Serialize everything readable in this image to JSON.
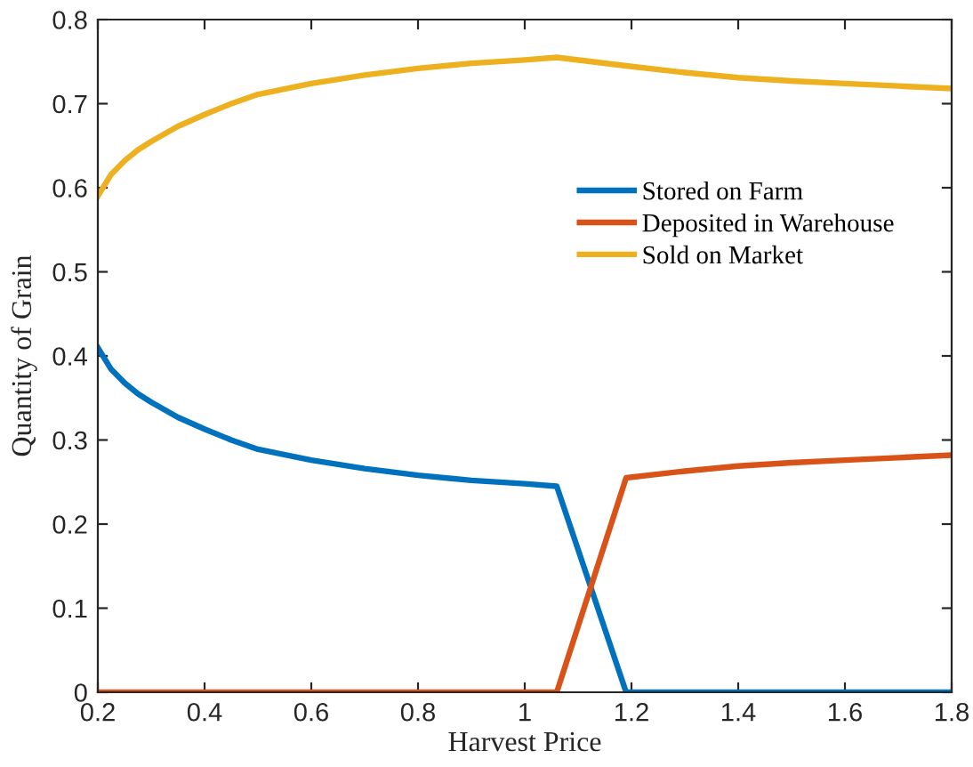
{
  "chart_data": {
    "type": "line",
    "xlabel": "Harvest Price",
    "ylabel": "Quantity of Grain",
    "x": [
      0.2,
      0.225,
      0.25,
      0.275,
      0.3,
      0.35,
      0.4,
      0.45,
      0.5,
      0.6,
      0.7,
      0.8,
      0.9,
      1.0,
      1.06,
      1.19,
      1.3,
      1.4,
      1.5,
      1.6,
      1.7,
      1.8
    ],
    "series": [
      {
        "name": "Stored on Farm",
        "color": "#0072bd",
        "values": [
          0.41,
          0.384,
          0.368,
          0.355,
          0.345,
          0.327,
          0.313,
          0.3,
          0.289,
          0.276,
          0.266,
          0.258,
          0.252,
          0.248,
          0.245,
          0,
          0,
          0,
          0,
          0,
          0,
          0
        ]
      },
      {
        "name": "Deposited in Warehouse",
        "color": "#d95319",
        "values": [
          0,
          0,
          0,
          0,
          0,
          0,
          0,
          0,
          0,
          0,
          0,
          0,
          0,
          0,
          0,
          0.255,
          0.263,
          0.269,
          0.273,
          0.276,
          0.279,
          0.282
        ]
      },
      {
        "name": "Sold on Market",
        "color": "#edb120",
        "values": [
          0.59,
          0.616,
          0.632,
          0.645,
          0.655,
          0.673,
          0.687,
          0.7,
          0.711,
          0.724,
          0.734,
          0.742,
          0.748,
          0.752,
          0.755,
          0.745,
          0.737,
          0.731,
          0.727,
          0.724,
          0.721,
          0.718
        ]
      }
    ],
    "xlim": [
      0.2,
      1.8
    ],
    "xticks": [
      0.2,
      0.4,
      0.6,
      0.8,
      1,
      1.2,
      1.4,
      1.6,
      1.8
    ],
    "ylim": [
      0,
      0.8
    ],
    "yticks": [
      0,
      0.1,
      0.2,
      0.3,
      0.4,
      0.5,
      0.6,
      0.7,
      0.8
    ],
    "legend": "upper right",
    "grid": false,
    "line_style": "solid",
    "marker": "none"
  }
}
